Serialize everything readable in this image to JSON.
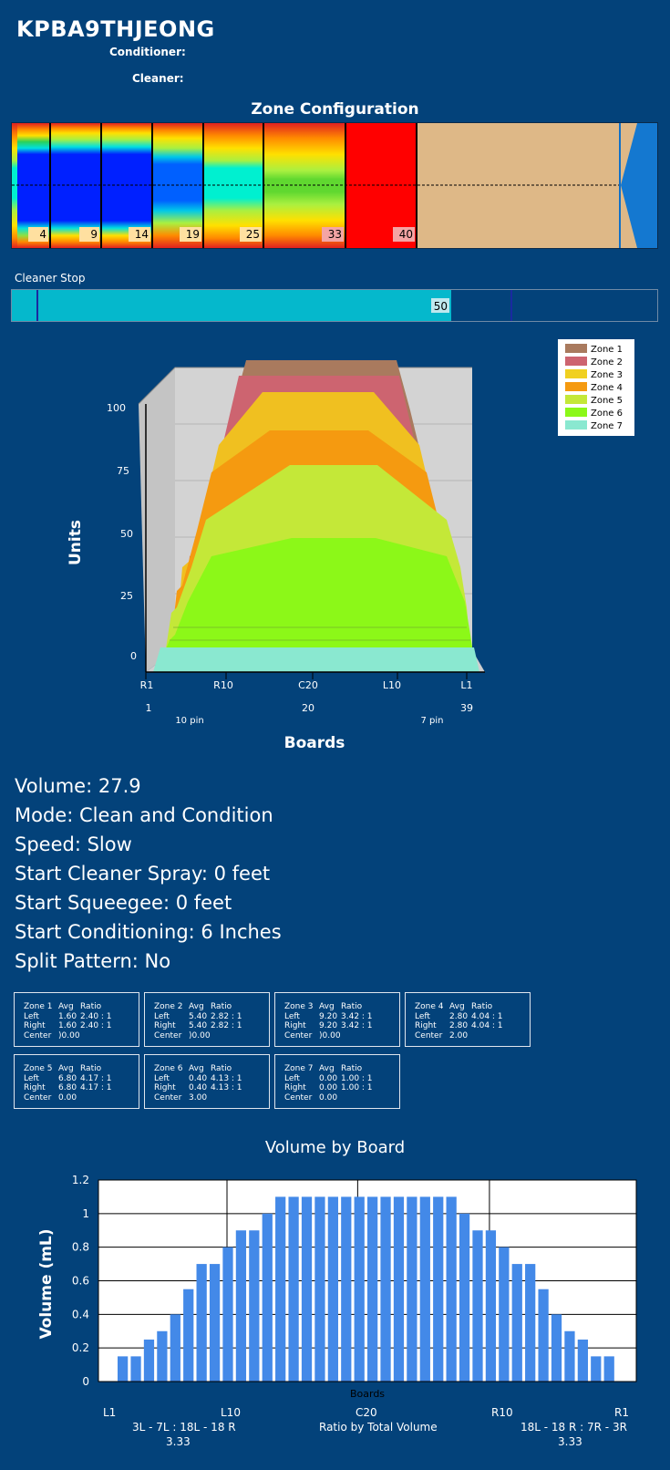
{
  "header": {
    "pattern_name": "KPBA9THJEONG",
    "conditioner_label": "Conditioner:",
    "cleaner_label": "Cleaner:"
  },
  "zone_config": {
    "title": "Zone Configuration",
    "zone_boundaries": [
      "4",
      "9",
      "14",
      "19",
      "25",
      "33",
      "40"
    ]
  },
  "cleaner_stop": {
    "label": "Cleaner Stop",
    "value": "50"
  },
  "profile_chart": {
    "ylabel": "Units",
    "xlabel": "Boards",
    "yticks": [
      "0",
      "25",
      "50",
      "75",
      "100"
    ],
    "xticks": [
      "R1",
      "R10",
      "C20",
      "L10",
      "L1"
    ],
    "board_numbers": [
      "1",
      "20",
      "39"
    ],
    "pin_left": "10 pin",
    "pin_right": "7 pin",
    "legend": [
      "Zone 1",
      "Zone 2",
      "Zone 3",
      "Zone 4",
      "Zone 5",
      "Zone 6",
      "Zone 7"
    ]
  },
  "stats": {
    "volume": "Volume: 27.9",
    "mode": "Mode: Clean and Condition",
    "speed": "Speed: Slow",
    "start_cleaner_spray": "Start Cleaner Spray: 0 feet",
    "start_squeegee": "Start Squeegee: 0 feet",
    "start_conditioning": "Start Conditioning: 6 Inches",
    "split_pattern": "Split Pattern: No"
  },
  "zones": [
    {
      "name": "Zone 1",
      "avg": "Avg",
      "ratio": "Ratio",
      "left": "1.60",
      "left_ratio": "2.40 : 1",
      "right": "1.60",
      "right_ratio": "2.40 : 1",
      "center": ")0.00"
    },
    {
      "name": "Zone 2",
      "avg": "Avg",
      "ratio": "Ratio",
      "left": "5.40",
      "left_ratio": "2.82 : 1",
      "right": "5.40",
      "right_ratio": "2.82 : 1",
      "center": ")0.00"
    },
    {
      "name": "Zone 3",
      "avg": "Avg",
      "ratio": "Ratio",
      "left": "9.20",
      "left_ratio": "3.42 : 1",
      "right": "9.20",
      "right_ratio": "3.42 : 1",
      "center": ")0.00"
    },
    {
      "name": "Zone 4",
      "avg": "Avg",
      "ratio": "Ratio",
      "left": "2.80",
      "left_ratio": "4.04 : 1",
      "right": "2.80",
      "right_ratio": "4.04 : 1",
      "center": "2.00"
    },
    {
      "name": "Zone 5",
      "avg": "Avg",
      "ratio": "Ratio",
      "left": "6.80",
      "left_ratio": "4.17 : 1",
      "right": "6.80",
      "right_ratio": "4.17 : 1",
      "center": "0.00"
    },
    {
      "name": "Zone 6",
      "avg": "Avg",
      "ratio": "Ratio",
      "left": "0.40",
      "left_ratio": "4.13 : 1",
      "right": "0.40",
      "right_ratio": "4.13 : 1",
      "center": "3.00"
    },
    {
      "name": "Zone 7",
      "avg": "Avg",
      "ratio": "Ratio",
      "left": "0.00",
      "left_ratio": "1.00 : 1",
      "right": "0.00",
      "right_ratio": "1.00 : 1",
      "center": "0.00"
    }
  ],
  "zone_row_labels": {
    "left": "Left",
    "right": "Right",
    "center": "Center"
  },
  "chart_data": {
    "type": "bar",
    "title": "Volume by Board",
    "ylabel": "Volume (mL)",
    "xlabel": "Boards",
    "ylim": [
      0,
      1.2
    ],
    "yticks": [
      "0",
      "0.2",
      "0.4",
      "0.6",
      "0.8",
      "1",
      "1.2"
    ],
    "xtick_labels": [
      "L1",
      "L10",
      "C20",
      "R10",
      "R1"
    ],
    "values": [
      0.15,
      0.15,
      0.25,
      0.3,
      0.4,
      0.55,
      0.7,
      0.7,
      0.8,
      0.9,
      0.9,
      1.0,
      1.1,
      1.1,
      1.1,
      1.1,
      1.1,
      1.1,
      1.1,
      1.1,
      1.1,
      1.1,
      1.1,
      1.1,
      1.1,
      1.1,
      1.0,
      0.9,
      0.9,
      0.8,
      0.7,
      0.7,
      0.55,
      0.4,
      0.3,
      0.25,
      0.15,
      0.15
    ],
    "color": "#4389e8",
    "grid": true
  },
  "footer": {
    "left_ratio_label": "3L - 7L : 18L - 18 R",
    "left_ratio_value": "3.33",
    "center_label": "Ratio by Total Volume",
    "right_ratio_label": "18L - 18 R : 7R - 3R",
    "right_ratio_value": "3.33"
  }
}
